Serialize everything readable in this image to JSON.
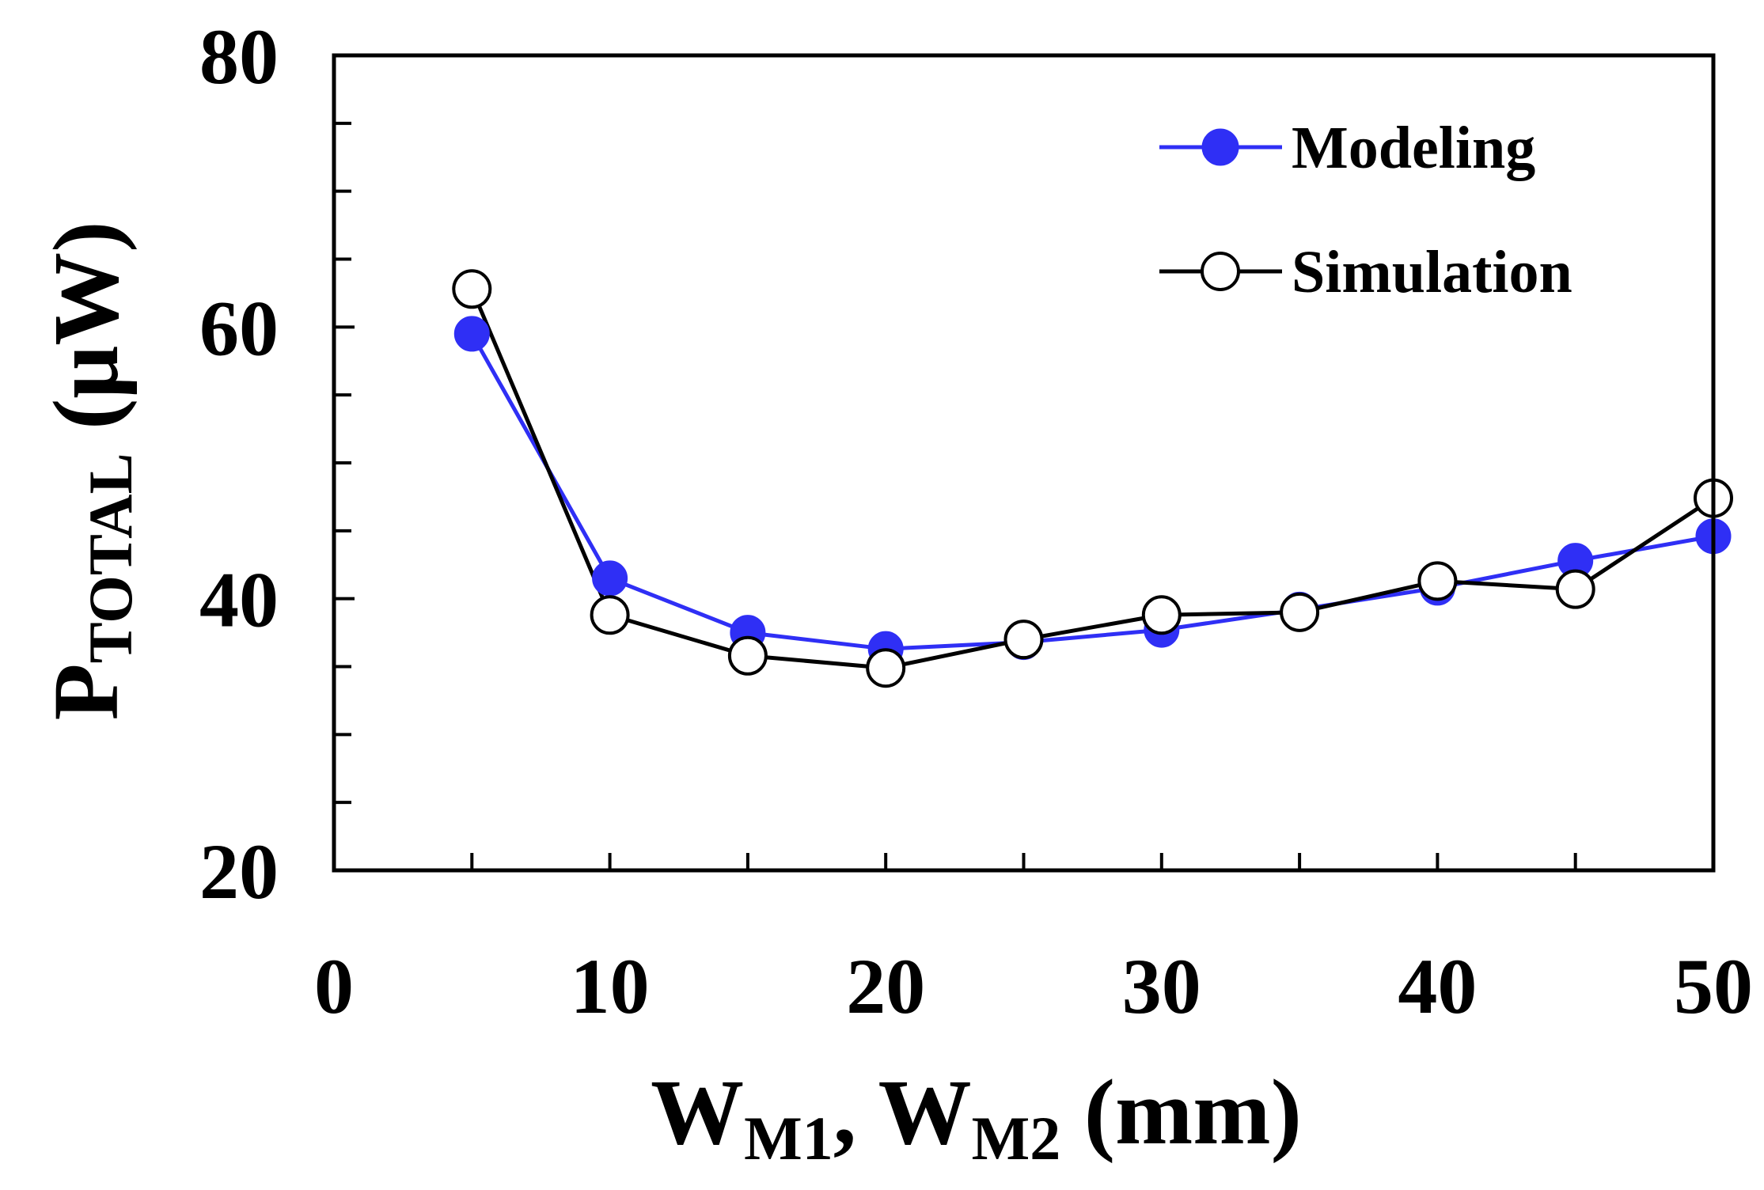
{
  "chart_data": {
    "type": "line",
    "x": [
      5,
      10,
      15,
      20,
      25,
      30,
      35,
      40,
      45,
      50
    ],
    "series": [
      {
        "name": "Modeling",
        "values": [
          59.5,
          41.5,
          37.5,
          36.3,
          36.8,
          37.7,
          39.2,
          40.8,
          42.8,
          44.6
        ],
        "color": "#2f2ff5",
        "marker": "filled-circle"
      },
      {
        "name": "Simulation",
        "values": [
          62.8,
          38.8,
          35.8,
          34.9,
          37.0,
          38.8,
          39.0,
          41.3,
          40.7,
          47.4
        ],
        "color": "#000000",
        "marker": "open-circle"
      }
    ],
    "xlim": [
      0,
      50
    ],
    "ylim": [
      20,
      80
    ],
    "xticks": [
      "0",
      "10",
      "20",
      "30",
      "40",
      "50"
    ],
    "yticks": [
      "20",
      "40",
      "60",
      "80"
    ],
    "xlabel": {
      "w1": "W",
      "sub1": "M1",
      "sep": ", ",
      "w2": "W",
      "sub2": "M2",
      "unit": " (mm)"
    },
    "ylabel": {
      "p": "P",
      "sub": "TOTAL",
      "unit": " (μW)"
    },
    "legend": {
      "position": "top-right",
      "entries": [
        "Modeling",
        "Simulation"
      ]
    },
    "grid": false
  }
}
